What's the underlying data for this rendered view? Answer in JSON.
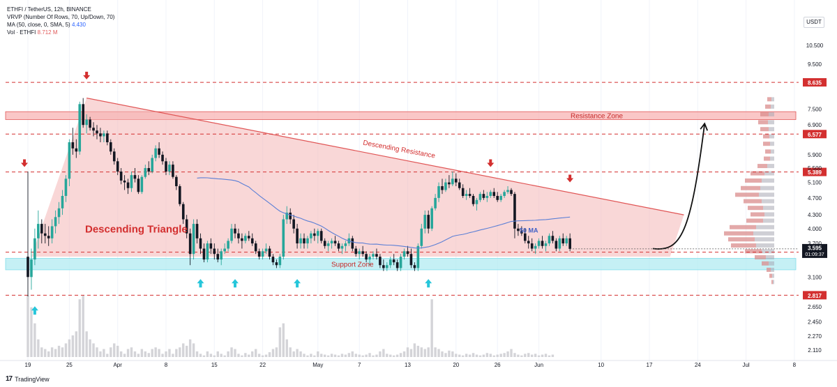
{
  "header": {
    "symbol_line": "ETHFI / TetherUS, 12h, BINANCE",
    "vrvp_line": "VRVP (Number Of Rows, 70, Up/Down, 70)",
    "ma_label": "MA (50, close, 0, SMA, 5)",
    "ma_value": "4.430",
    "vol_label": "Vol · ETHFI",
    "vol_value": "8.712 M"
  },
  "currency": "USDT",
  "footer": {
    "brand": "TradingView",
    "logo": "17"
  },
  "colors": {
    "up": "#26a69a",
    "down": "#131722",
    "triangle_fill": "#f4b7b7",
    "resistance_line": "#e05555",
    "support_fill": "#b2ebf2",
    "resistance_fill": "#f8b4b4",
    "level_line": "#d32f2f",
    "ma": "#5b7fd6",
    "marker_down": "#d32f2f",
    "marker_up": "#26c6da",
    "volume": "#cfcfd4"
  },
  "chart_data": {
    "type": "candlestick",
    "y_scale": "log",
    "ylim": [
      2.05,
      11.5
    ],
    "y_ticks": [
      "10.500",
      "9.500",
      "7.500",
      "6.900",
      "5.900",
      "5.500",
      "5.100",
      "4.700",
      "4.300",
      "4.000",
      "3.700",
      "3.100",
      "2.650",
      "2.450",
      "2.270",
      "2.110"
    ],
    "x_ticks": [
      {
        "label": "19",
        "pos": 0
      },
      {
        "label": "25",
        "pos": 12
      },
      {
        "label": "Apr",
        "pos": 26
      },
      {
        "label": "8",
        "pos": 40
      },
      {
        "label": "15",
        "pos": 54
      },
      {
        "label": "22",
        "pos": 68
      },
      {
        "label": "May",
        "pos": 84
      },
      {
        "label": "7",
        "pos": 96
      },
      {
        "label": "13",
        "pos": 110
      },
      {
        "label": "20",
        "pos": 124
      },
      {
        "label": "26",
        "pos": 136
      },
      {
        "label": "Jun",
        "pos": 148
      },
      {
        "label": "10",
        "pos": 166
      },
      {
        "label": "17",
        "pos": 180
      },
      {
        "label": "24",
        "pos": 194
      },
      {
        "label": "Jul",
        "pos": 208
      },
      {
        "label": "8",
        "pos": 222
      }
    ],
    "price_levels": [
      {
        "value": 8.635,
        "label": "8.635"
      },
      {
        "value": 6.577,
        "label": "6.577"
      },
      {
        "value": 5.389,
        "label": "5.389"
      },
      {
        "value": 3.533,
        "label": "3.533"
      },
      {
        "value": 2.817,
        "label": "2.817"
      }
    ],
    "current_price": {
      "value": 3.595,
      "label": "3.595",
      "countdown": "01:09:37"
    },
    "zones": [
      {
        "name": "Resistance Zone",
        "low": 7.1,
        "high": 7.4
      },
      {
        "name": "Support Zone",
        "low": 3.22,
        "high": 3.42
      }
    ],
    "annotations": [
      {
        "text": "Descending Triangle"
      },
      {
        "text": "Descending Resistance"
      },
      {
        "text": "50 MA"
      },
      {
        "text": "Resistance Zone"
      },
      {
        "text": "Support Zone"
      }
    ],
    "trendline": {
      "from": {
        "pos": 17,
        "price": 7.95
      },
      "to": {
        "pos": 190,
        "price": 4.3
      }
    },
    "triangle": [
      {
        "pos": 1,
        "price": 3.45
      },
      {
        "pos": 17,
        "price": 7.95
      },
      {
        "pos": 190,
        "price": 4.3
      },
      {
        "pos": 186,
        "price": 3.45
      }
    ],
    "projection": {
      "from": {
        "pos": 181,
        "price": 3.6
      },
      "to": {
        "pos": 196,
        "price": 6.95
      }
    },
    "markers_down": [
      {
        "pos": -1,
        "price": 5.55
      },
      {
        "pos": 17,
        "price": 8.8
      },
      {
        "pos": 134,
        "price": 5.55
      },
      {
        "pos": 157,
        "price": 5.12
      }
    ],
    "markers_up": [
      {
        "pos": 2,
        "price": 2.6
      },
      {
        "pos": 50,
        "price": 3.0
      },
      {
        "pos": 60,
        "price": 3.0
      },
      {
        "pos": 78,
        "price": 3.0
      },
      {
        "pos": 116,
        "price": 3.0
      }
    ],
    "ohlc": [
      [
        3.45,
        5.4,
        2.8,
        3.1
      ],
      [
        3.1,
        3.6,
        2.9,
        3.4
      ],
      [
        3.4,
        4.0,
        3.3,
        3.8
      ],
      [
        3.8,
        4.4,
        3.6,
        4.1
      ],
      [
        4.1,
        4.2,
        3.7,
        3.9
      ],
      [
        3.9,
        4.1,
        3.7,
        3.85
      ],
      [
        3.85,
        4.05,
        3.65,
        3.8
      ],
      [
        3.8,
        4.2,
        3.7,
        4.05
      ],
      [
        4.05,
        4.4,
        3.9,
        4.25
      ],
      [
        4.25,
        4.6,
        4.1,
        4.45
      ],
      [
        4.45,
        4.9,
        4.3,
        4.75
      ],
      [
        4.75,
        5.3,
        4.6,
        5.2
      ],
      [
        5.2,
        6.4,
        5.0,
        6.3
      ],
      [
        6.3,
        6.8,
        5.9,
        6.1
      ],
      [
        6.1,
        6.4,
        5.8,
        6.0
      ],
      [
        6.0,
        7.8,
        5.9,
        7.7
      ],
      [
        7.7,
        7.95,
        6.8,
        6.9
      ],
      [
        6.9,
        7.3,
        6.6,
        7.1
      ],
      [
        7.1,
        7.2,
        6.7,
        6.8
      ],
      [
        6.8,
        7.0,
        6.5,
        6.7
      ],
      [
        6.7,
        6.9,
        6.4,
        6.6
      ],
      [
        6.6,
        6.8,
        6.3,
        6.5
      ],
      [
        6.5,
        6.7,
        6.3,
        6.6
      ],
      [
        6.6,
        6.7,
        6.2,
        6.3
      ],
      [
        6.3,
        6.4,
        5.9,
        6.0
      ],
      [
        6.0,
        6.1,
        5.6,
        5.7
      ],
      [
        5.7,
        5.8,
        5.3,
        5.4
      ],
      [
        5.4,
        5.5,
        5.05,
        5.15
      ],
      [
        5.15,
        5.3,
        4.9,
        5.1
      ],
      [
        5.1,
        5.2,
        4.8,
        4.95
      ],
      [
        4.95,
        5.4,
        4.85,
        5.3
      ],
      [
        5.3,
        5.5,
        5.1,
        5.2
      ],
      [
        5.2,
        5.3,
        4.8,
        4.85
      ],
      [
        4.85,
        5.3,
        4.8,
        5.25
      ],
      [
        5.25,
        5.6,
        5.2,
        5.5
      ],
      [
        5.5,
        5.7,
        5.3,
        5.4
      ],
      [
        5.4,
        5.9,
        5.35,
        5.8
      ],
      [
        5.8,
        6.2,
        5.7,
        6.1
      ],
      [
        6.1,
        6.3,
        5.8,
        5.9
      ],
      [
        5.9,
        6.0,
        5.6,
        5.7
      ],
      [
        5.7,
        5.8,
        5.3,
        5.4
      ],
      [
        5.4,
        5.7,
        5.3,
        5.6
      ],
      [
        5.6,
        5.7,
        5.2,
        5.25
      ],
      [
        5.25,
        5.3,
        4.9,
        5.0
      ],
      [
        5.0,
        5.05,
        4.5,
        4.55
      ],
      [
        4.55,
        4.6,
        4.1,
        4.2
      ],
      [
        4.2,
        4.3,
        3.8,
        3.9
      ],
      [
        3.9,
        4.0,
        3.3,
        3.5
      ],
      [
        3.5,
        4.2,
        3.4,
        4.1
      ],
      [
        4.1,
        4.2,
        3.7,
        3.8
      ],
      [
        3.8,
        3.9,
        3.5,
        3.6
      ],
      [
        3.6,
        3.7,
        3.35,
        3.4
      ],
      [
        3.4,
        3.75,
        3.35,
        3.7
      ],
      [
        3.7,
        3.8,
        3.5,
        3.6
      ],
      [
        3.6,
        3.7,
        3.4,
        3.5
      ],
      [
        3.5,
        3.6,
        3.35,
        3.4
      ],
      [
        3.4,
        3.6,
        3.3,
        3.55
      ],
      [
        3.55,
        3.7,
        3.5,
        3.6
      ],
      [
        3.6,
        3.8,
        3.55,
        3.75
      ],
      [
        3.75,
        4.1,
        3.7,
        4.0
      ],
      [
        4.0,
        4.1,
        3.8,
        3.9
      ],
      [
        3.9,
        4.0,
        3.7,
        3.8
      ],
      [
        3.8,
        3.9,
        3.6,
        3.75
      ],
      [
        3.75,
        3.9,
        3.7,
        3.85
      ],
      [
        3.85,
        3.95,
        3.75,
        3.8
      ],
      [
        3.8,
        3.9,
        3.65,
        3.7
      ],
      [
        3.7,
        3.75,
        3.5,
        3.55
      ],
      [
        3.55,
        3.6,
        3.4,
        3.45
      ],
      [
        3.45,
        3.6,
        3.4,
        3.55
      ],
      [
        3.55,
        3.7,
        3.5,
        3.6
      ],
      [
        3.6,
        3.65,
        3.4,
        3.45
      ],
      [
        3.45,
        3.5,
        3.3,
        3.35
      ],
      [
        3.35,
        3.4,
        3.25,
        3.3
      ],
      [
        3.3,
        3.5,
        3.25,
        3.45
      ],
      [
        3.45,
        4.3,
        3.4,
        4.2
      ],
      [
        4.2,
        4.5,
        4.1,
        4.35
      ],
      [
        4.35,
        4.45,
        4.1,
        4.2
      ],
      [
        4.2,
        4.3,
        3.9,
        4.0
      ],
      [
        4.0,
        4.1,
        3.6,
        3.7
      ],
      [
        3.7,
        3.9,
        3.6,
        3.8
      ],
      [
        3.8,
        3.9,
        3.6,
        3.7
      ],
      [
        3.7,
        3.85,
        3.6,
        3.8
      ],
      [
        3.8,
        3.95,
        3.7,
        3.9
      ],
      [
        3.9,
        4.0,
        3.75,
        3.85
      ],
      [
        3.85,
        4.0,
        3.7,
        3.95
      ],
      [
        3.95,
        4.0,
        3.7,
        3.75
      ],
      [
        3.75,
        3.8,
        3.6,
        3.65
      ],
      [
        3.65,
        3.75,
        3.55,
        3.7
      ],
      [
        3.7,
        3.8,
        3.6,
        3.75
      ],
      [
        3.75,
        3.85,
        3.65,
        3.7
      ],
      [
        3.7,
        3.75,
        3.55,
        3.6
      ],
      [
        3.6,
        3.7,
        3.5,
        3.65
      ],
      [
        3.65,
        3.75,
        3.55,
        3.7
      ],
      [
        3.7,
        3.9,
        3.65,
        3.8
      ],
      [
        3.8,
        3.85,
        3.55,
        3.6
      ],
      [
        3.6,
        3.65,
        3.45,
        3.5
      ],
      [
        3.5,
        3.6,
        3.4,
        3.55
      ],
      [
        3.55,
        3.65,
        3.45,
        3.5
      ],
      [
        3.5,
        3.55,
        3.35,
        3.4
      ],
      [
        3.4,
        3.5,
        3.3,
        3.45
      ],
      [
        3.45,
        3.55,
        3.4,
        3.5
      ],
      [
        3.5,
        3.6,
        3.4,
        3.45
      ],
      [
        3.45,
        3.5,
        3.25,
        3.3
      ],
      [
        3.3,
        3.4,
        3.2,
        3.25
      ],
      [
        3.25,
        3.35,
        3.2,
        3.3
      ],
      [
        3.3,
        3.45,
        3.25,
        3.4
      ],
      [
        3.4,
        3.5,
        3.3,
        3.35
      ],
      [
        3.35,
        3.4,
        3.2,
        3.25
      ],
      [
        3.25,
        3.5,
        3.2,
        3.45
      ],
      [
        3.45,
        3.6,
        3.4,
        3.55
      ],
      [
        3.55,
        3.65,
        3.45,
        3.5
      ],
      [
        3.5,
        3.6,
        3.25,
        3.3
      ],
      [
        3.3,
        3.35,
        3.2,
        3.25
      ],
      [
        3.25,
        3.7,
        3.2,
        3.65
      ],
      [
        3.65,
        4.1,
        3.6,
        4.0
      ],
      [
        4.0,
        4.4,
        3.9,
        4.3
      ],
      [
        4.3,
        4.4,
        3.9,
        4.0
      ],
      [
        4.0,
        4.5,
        3.95,
        4.45
      ],
      [
        4.45,
        4.8,
        4.4,
        4.7
      ],
      [
        4.7,
        5.1,
        4.6,
        5.0
      ],
      [
        5.0,
        5.2,
        4.8,
        4.9
      ],
      [
        4.9,
        5.2,
        4.85,
        5.1
      ],
      [
        5.1,
        5.3,
        4.95,
        5.05
      ],
      [
        5.05,
        5.4,
        5.0,
        5.2
      ],
      [
        5.2,
        5.35,
        5.0,
        5.1
      ],
      [
        5.1,
        5.2,
        4.9,
        4.95
      ],
      [
        4.95,
        5.05,
        4.7,
        4.75
      ],
      [
        4.75,
        4.9,
        4.65,
        4.8
      ],
      [
        4.8,
        4.95,
        4.7,
        4.75
      ],
      [
        4.75,
        4.8,
        4.5,
        4.55
      ],
      [
        4.55,
        4.7,
        4.4,
        4.65
      ],
      [
        4.65,
        4.85,
        4.6,
        4.8
      ],
      [
        4.8,
        4.9,
        4.65,
        4.7
      ],
      [
        4.7,
        4.85,
        4.6,
        4.75
      ],
      [
        4.75,
        4.9,
        4.7,
        4.85
      ],
      [
        4.85,
        4.95,
        4.7,
        4.75
      ],
      [
        4.75,
        4.85,
        4.6,
        4.65
      ],
      [
        4.65,
        4.8,
        4.6,
        4.75
      ],
      [
        4.75,
        4.9,
        4.7,
        4.85
      ],
      [
        4.85,
        5.0,
        4.8,
        4.9
      ],
      [
        4.9,
        4.95,
        4.75,
        4.8
      ],
      [
        4.8,
        4.85,
        3.8,
        4.0
      ],
      [
        4.0,
        4.1,
        3.85,
        3.95
      ],
      [
        3.95,
        4.05,
        3.85,
        3.9
      ],
      [
        3.9,
        4.0,
        3.7,
        3.75
      ],
      [
        3.75,
        3.85,
        3.6,
        3.7
      ],
      [
        3.7,
        3.8,
        3.55,
        3.6
      ],
      [
        3.6,
        3.7,
        3.5,
        3.65
      ],
      [
        3.65,
        3.8,
        3.6,
        3.75
      ],
      [
        3.75,
        3.85,
        3.6,
        3.65
      ],
      [
        3.65,
        3.75,
        3.55,
        3.7
      ],
      [
        3.7,
        3.9,
        3.65,
        3.85
      ],
      [
        3.85,
        3.95,
        3.7,
        3.75
      ],
      [
        3.75,
        3.8,
        3.55,
        3.6
      ],
      [
        3.6,
        3.85,
        3.55,
        3.8
      ],
      [
        3.8,
        3.9,
        3.65,
        3.7
      ],
      [
        3.7,
        3.85,
        3.65,
        3.8
      ],
      [
        3.8,
        3.9,
        3.55,
        3.595
      ]
    ],
    "volume": [
      9.5,
      8,
      6,
      4,
      3,
      2.8,
      2.5,
      3,
      2.8,
      3.2,
      3,
      3.5,
      4,
      4.5,
      5,
      9,
      9.5,
      5,
      4,
      3.5,
      3,
      2.5,
      2.8,
      2.2,
      3,
      3.5,
      3.2,
      2.5,
      2.2,
      2.8,
      3,
      2.5,
      2.2,
      2.8,
      2.5,
      2.3,
      2.8,
      3,
      2.8,
      2.2,
      2.5,
      2.8,
      2.2,
      2.8,
      3,
      3.5,
      3.2,
      4,
      3.5,
      2.5,
      2.2,
      2,
      2.5,
      2.2,
      2,
      2.5,
      2.2,
      2,
      2.5,
      3,
      2.8,
      2.2,
      2,
      2.3,
      2.1,
      2.5,
      2.8,
      2.2,
      2,
      2.1,
      2.4,
      2.8,
      3,
      5.5,
      6,
      4,
      3,
      2.5,
      2.8,
      2.5,
      2.2,
      2,
      2.2,
      2,
      2.5,
      2.2,
      2.1,
      2,
      2.2,
      2.1,
      2,
      2.2,
      2.1,
      2.3,
      2.5,
      2.2,
      2.1,
      2,
      2.1,
      2.3,
      2,
      2.1,
      2.5,
      2.8,
      2.2,
      2.1,
      2,
      2.1,
      2.3,
      2.5,
      3,
      2.8,
      3.5,
      3.2,
      3,
      2.8,
      3,
      9,
      3,
      2.8,
      2.5,
      2.3,
      2.6,
      2.5,
      2.2,
      2.1,
      2,
      2.2,
      2.1,
      2.3,
      2.1,
      2,
      2.1,
      2.3,
      2.2,
      2,
      2.1,
      2.2,
      2.3,
      2.5,
      2.8,
      2.3,
      2.1,
      2,
      2.2,
      2.3,
      2.1,
      2.2,
      2,
      2.1,
      2.2,
      2,
      2.1
    ],
    "vrvp": [
      {
        "price": 7.9,
        "up": 4,
        "down": 6
      },
      {
        "price": 7.6,
        "up": 5,
        "down": 8
      },
      {
        "price": 7.3,
        "up": 8,
        "down": 12
      },
      {
        "price": 7.0,
        "up": 9,
        "down": 14
      },
      {
        "price": 6.75,
        "up": 8,
        "down": 12
      },
      {
        "price": 6.5,
        "up": 7,
        "down": 9
      },
      {
        "price": 6.25,
        "up": 6,
        "down": 10
      },
      {
        "price": 6.0,
        "up": 5,
        "down": 8
      },
      {
        "price": 5.78,
        "up": 6,
        "down": 9
      },
      {
        "price": 5.56,
        "up": 10,
        "down": 14
      },
      {
        "price": 5.35,
        "up": 14,
        "down": 20
      },
      {
        "price": 5.15,
        "up": 18,
        "down": 24
      },
      {
        "price": 4.95,
        "up": 20,
        "down": 28
      },
      {
        "price": 4.78,
        "up": 22,
        "down": 34
      },
      {
        "price": 4.62,
        "up": 18,
        "down": 26
      },
      {
        "price": 4.46,
        "up": 16,
        "down": 22
      },
      {
        "price": 4.31,
        "up": 14,
        "down": 20
      },
      {
        "price": 4.17,
        "up": 16,
        "down": 24
      },
      {
        "price": 4.03,
        "up": 26,
        "down": 38
      },
      {
        "price": 3.9,
        "up": 30,
        "down": 42
      },
      {
        "price": 3.78,
        "up": 28,
        "down": 38
      },
      {
        "price": 3.66,
        "up": 26,
        "down": 36
      },
      {
        "price": 3.55,
        "up": 18,
        "down": 24
      },
      {
        "price": 3.44,
        "up": 12,
        "down": 16
      },
      {
        "price": 3.33,
        "up": 8,
        "down": 10
      },
      {
        "price": 3.22,
        "up": 5,
        "down": 6
      },
      {
        "price": 3.12,
        "up": 3,
        "down": 4
      },
      {
        "price": 3.02,
        "up": 2,
        "down": 2
      }
    ]
  }
}
